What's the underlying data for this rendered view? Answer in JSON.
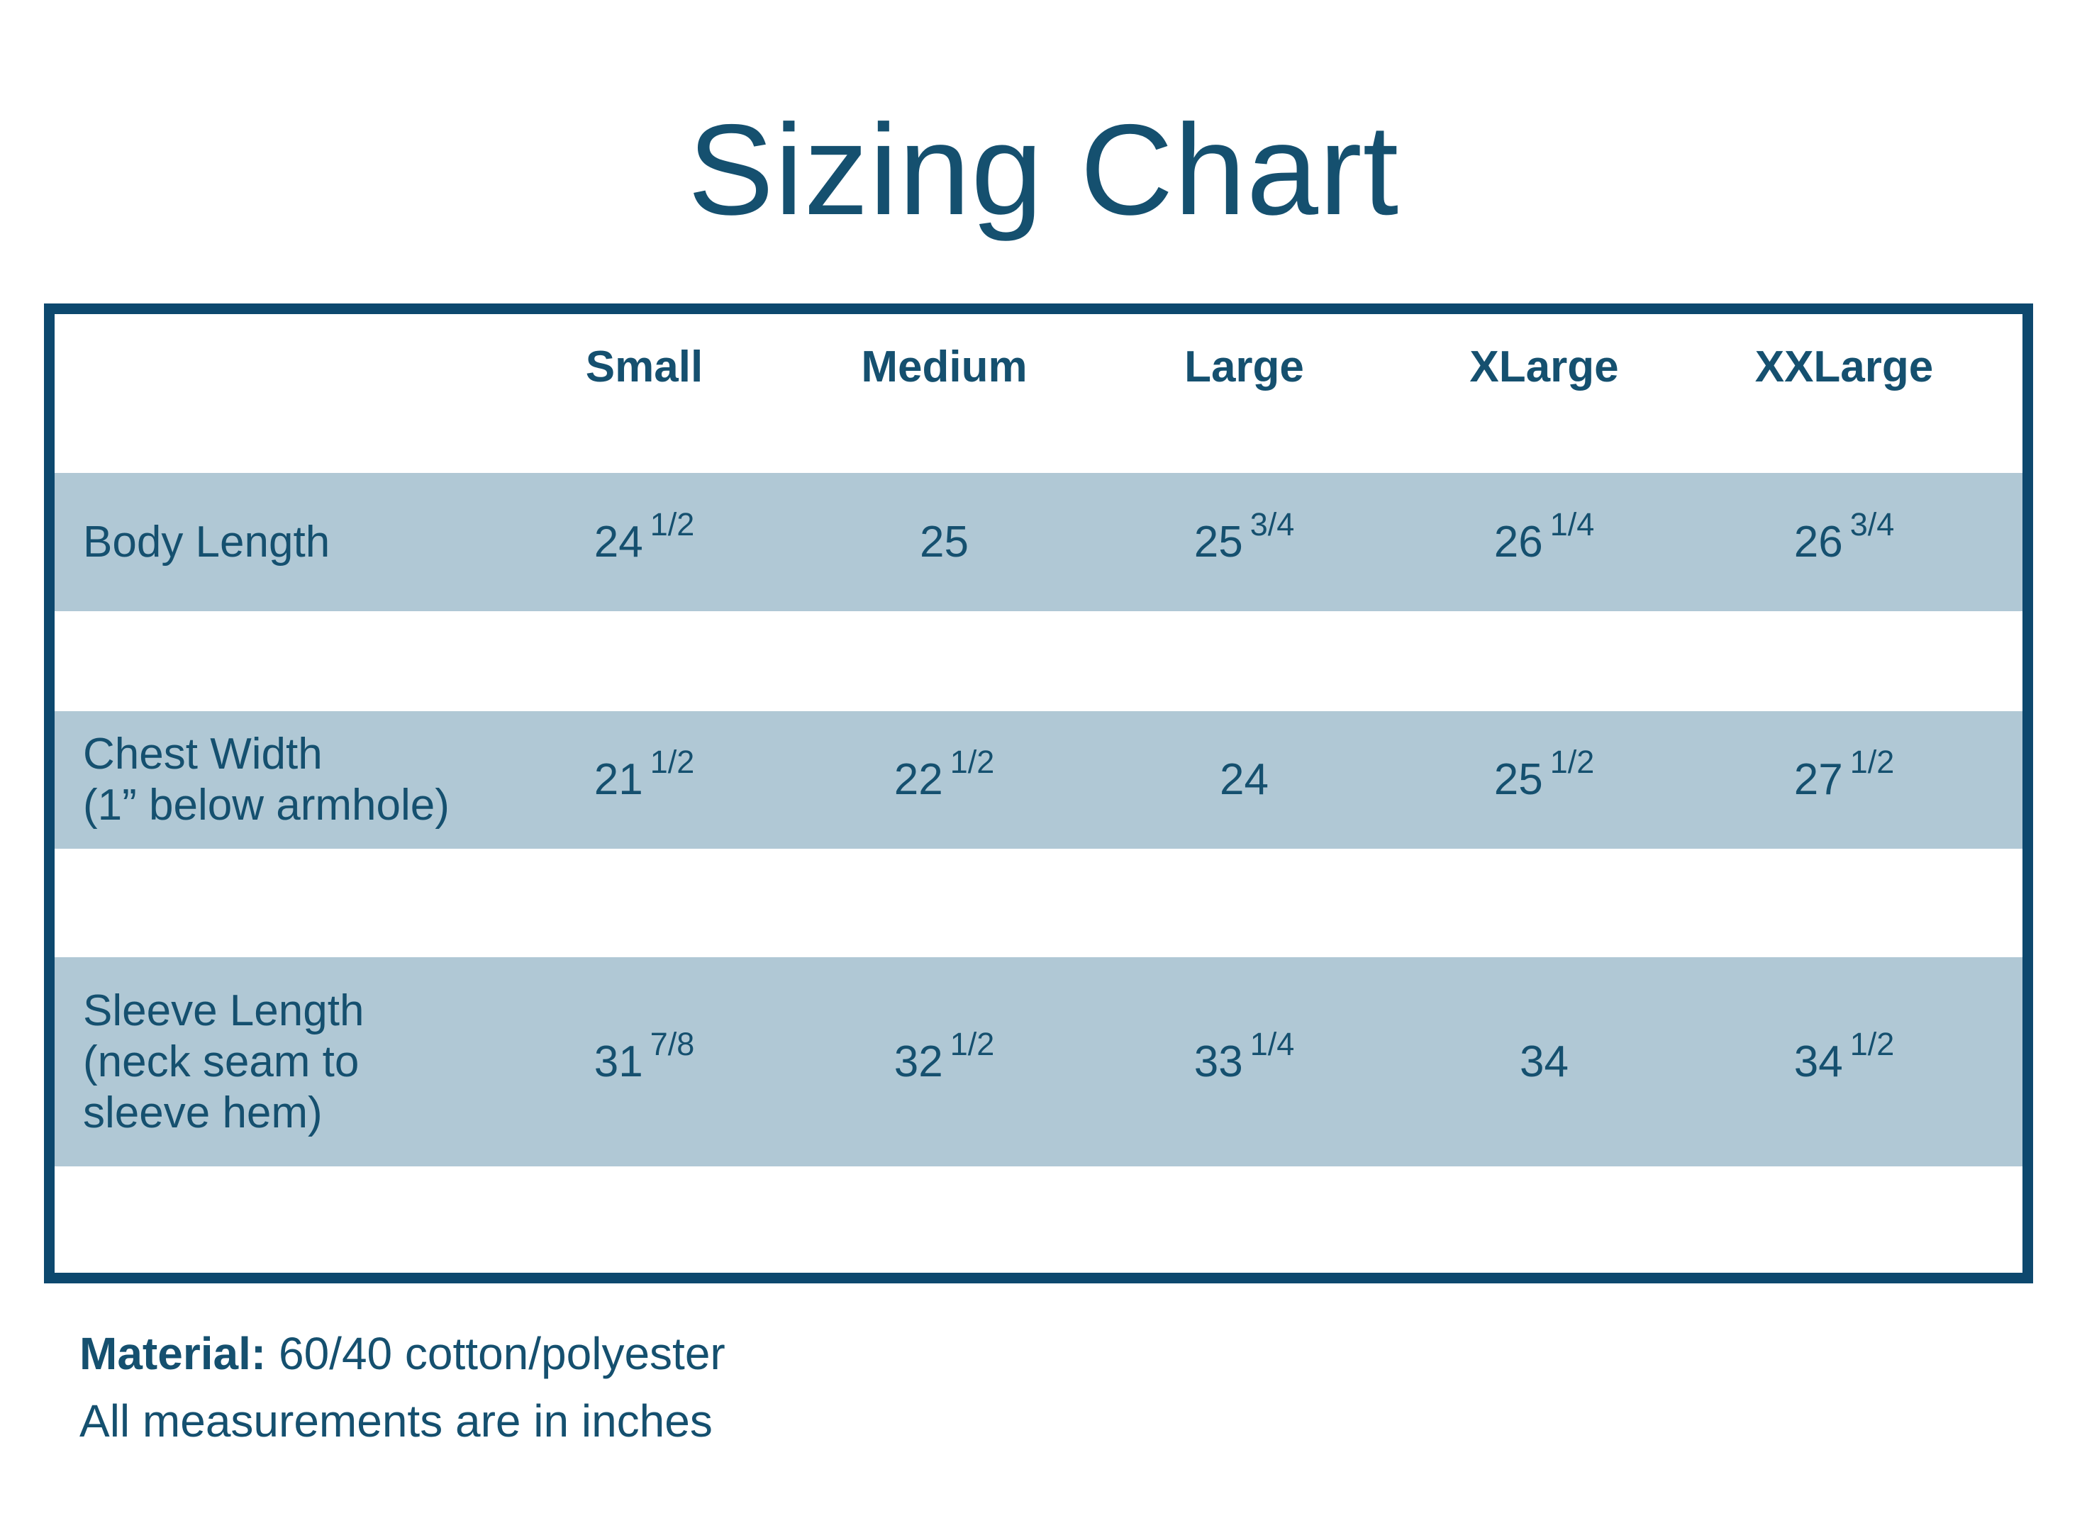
{
  "title": "Sizing Chart",
  "colors": {
    "navy_text": "#15506f",
    "border_navy": "#0d486e",
    "band_blue": "#b0c8d5",
    "background": "#ffffff"
  },
  "table": {
    "column_headers": [
      "Small",
      "Medium",
      "Large",
      "XLarge",
      "XXLarge"
    ],
    "rows": [
      {
        "label": "Body Length",
        "label_lines": [
          "Body Length"
        ],
        "values": [
          {
            "whole": "24",
            "fraction": "1/2"
          },
          {
            "whole": "25",
            "fraction": ""
          },
          {
            "whole": "25",
            "fraction": "3/4"
          },
          {
            "whole": "26",
            "fraction": "1/4"
          },
          {
            "whole": "26",
            "fraction": "3/4"
          }
        ]
      },
      {
        "label": "Chest Width (1” below armhole)",
        "label_lines": [
          "Chest Width",
          "(1” below armhole)"
        ],
        "values": [
          {
            "whole": "21",
            "fraction": "1/2"
          },
          {
            "whole": "22",
            "fraction": "1/2"
          },
          {
            "whole": "24",
            "fraction": ""
          },
          {
            "whole": "25",
            "fraction": "1/2"
          },
          {
            "whole": "27",
            "fraction": "1/2"
          }
        ]
      },
      {
        "label": "Sleeve Length (neck seam to sleeve hem)",
        "label_lines": [
          "Sleeve Length",
          "(neck seam to",
          "sleeve hem)"
        ],
        "values": [
          {
            "whole": "31",
            "fraction": "7/8"
          },
          {
            "whole": "32",
            "fraction": "1/2"
          },
          {
            "whole": "33",
            "fraction": "1/4"
          },
          {
            "whole": "34",
            "fraction": ""
          },
          {
            "whole": "34",
            "fraction": "1/2"
          }
        ]
      }
    ]
  },
  "footer": {
    "material_label": "Material:",
    "material_value": " 60/40 cotton/polyester",
    "note": "All measurements are in inches"
  },
  "chart_data": {
    "type": "table",
    "title": "Sizing Chart",
    "columns": [
      "Small",
      "Medium",
      "Large",
      "XLarge",
      "XXLarge"
    ],
    "rows": [
      {
        "label": "Body Length",
        "values_inches": [
          24.5,
          25,
          25.75,
          26.25,
          26.75
        ]
      },
      {
        "label": "Chest Width (1” below armhole)",
        "values_inches": [
          21.5,
          22.5,
          24,
          25.5,
          27.5
        ]
      },
      {
        "label": "Sleeve Length (neck seam to sleeve hem)",
        "values_inches": [
          31.875,
          32.5,
          33.25,
          34,
          34.5
        ]
      }
    ],
    "notes": [
      "Material: 60/40 cotton/polyester",
      "All measurements are in inches"
    ]
  }
}
